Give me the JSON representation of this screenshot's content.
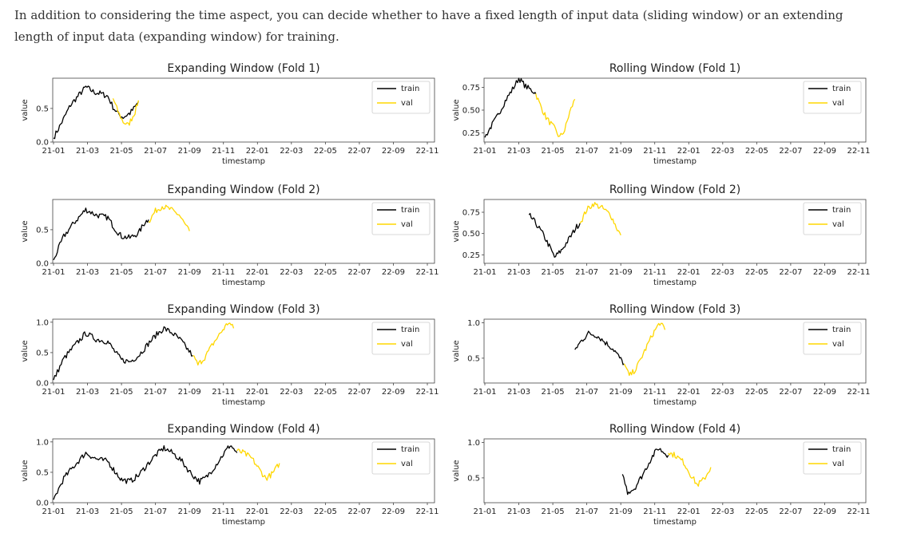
{
  "intro_text": "In addition to considering the time aspect, you can decide whether to have a fixed length of input data (sliding window) or an extending length of input data (expanding window) for training.",
  "colors": {
    "train": "#000000",
    "val": "#ffd700"
  },
  "chart_data": [
    {
      "type": "line",
      "title": "Expanding Window  (Fold 1)",
      "xlabel": "timestamp",
      "ylabel": "value",
      "x_ticks": [
        "21-01",
        "21-03",
        "21-05",
        "21-07",
        "21-09",
        "21-11",
        "22-01",
        "22-03",
        "22-05",
        "22-07",
        "22-09",
        "22-11"
      ],
      "y_ticks": [
        "0.0",
        "0.5"
      ],
      "ylim": [
        0,
        0.95
      ],
      "grid": false,
      "legend": "top-right",
      "series": [
        {
          "name": "train",
          "values": [
            [
              0,
              0.06
            ],
            [
              0.5,
              0.3
            ],
            [
              1.0,
              0.55
            ],
            [
              1.5,
              0.7
            ],
            [
              1.9,
              0.82
            ],
            [
              2.4,
              0.74
            ],
            [
              2.8,
              0.72
            ],
            [
              3.2,
              0.68
            ],
            [
              3.5,
              0.52
            ],
            [
              3.8,
              0.42
            ],
            [
              4.1,
              0.37
            ],
            [
              4.5,
              0.43
            ],
            [
              4.8,
              0.52
            ],
            [
              5.0,
              0.6
            ]
          ]
        },
        {
          "name": "val",
          "values": [
            [
              3.5,
              0.65
            ],
            [
              3.8,
              0.45
            ],
            [
              4.1,
              0.3
            ],
            [
              4.4,
              0.25
            ],
            [
              4.8,
              0.45
            ],
            [
              5.0,
              0.62
            ]
          ]
        }
      ]
    },
    {
      "type": "line",
      "title": "Rolling Window  (Fold 1)",
      "xlabel": "timestamp",
      "ylabel": "value",
      "x_ticks": [
        "21-01",
        "21-03",
        "21-05",
        "21-07",
        "21-09",
        "21-11",
        "22-01",
        "22-03",
        "22-05",
        "22-07",
        "22-09",
        "22-11"
      ],
      "y_ticks": [
        "0.25",
        "0.50",
        "0.75"
      ],
      "ylim": [
        0.15,
        0.85
      ],
      "grid": false,
      "legend": "top-right",
      "series": [
        {
          "name": "train",
          "values": [
            [
              0,
              0.2
            ],
            [
              0.3,
              0.3
            ],
            [
              0.7,
              0.42
            ],
            [
              1.2,
              0.6
            ],
            [
              1.7,
              0.75
            ],
            [
              2.0,
              0.85
            ],
            [
              2.4,
              0.76
            ],
            [
              2.9,
              0.7
            ],
            [
              3.0,
              0.68
            ]
          ]
        },
        {
          "name": "val",
          "values": [
            [
              3.0,
              0.68
            ],
            [
              3.2,
              0.58
            ],
            [
              3.6,
              0.42
            ],
            [
              4.1,
              0.3
            ],
            [
              4.4,
              0.2
            ],
            [
              4.7,
              0.28
            ],
            [
              5.0,
              0.48
            ],
            [
              5.3,
              0.62
            ]
          ]
        }
      ]
    },
    {
      "type": "line",
      "title": "Expanding Window  (Fold 2)",
      "xlabel": "timestamp",
      "ylabel": "value",
      "x_ticks": [
        "21-01",
        "21-03",
        "21-05",
        "21-07",
        "21-09",
        "21-11",
        "22-01",
        "22-03",
        "22-05",
        "22-07",
        "22-09",
        "22-11"
      ],
      "y_ticks": [
        "0.0",
        "0.5"
      ],
      "ylim": [
        0,
        0.95
      ],
      "grid": false,
      "legend": "top-right",
      "series": [
        {
          "name": "train",
          "values": [
            [
              0,
              0.05
            ],
            [
              0.6,
              0.4
            ],
            [
              1.2,
              0.6
            ],
            [
              1.9,
              0.8
            ],
            [
              2.5,
              0.72
            ],
            [
              3.2,
              0.68
            ],
            [
              3.6,
              0.52
            ],
            [
              4.0,
              0.4
            ],
            [
              4.5,
              0.38
            ],
            [
              5.0,
              0.45
            ],
            [
              5.4,
              0.62
            ],
            [
              5.6,
              0.65
            ]
          ]
        },
        {
          "name": "val",
          "values": [
            [
              5.6,
              0.62
            ],
            [
              6.0,
              0.78
            ],
            [
              6.4,
              0.85
            ],
            [
              6.9,
              0.8
            ],
            [
              7.4,
              0.72
            ],
            [
              7.8,
              0.55
            ],
            [
              8.0,
              0.48
            ]
          ]
        }
      ]
    },
    {
      "type": "line",
      "title": "Rolling Window  (Fold 2)",
      "xlabel": "timestamp",
      "ylabel": "value",
      "x_ticks": [
        "21-01",
        "21-03",
        "21-05",
        "21-07",
        "21-09",
        "21-11",
        "22-01",
        "22-03",
        "22-05",
        "22-07",
        "22-09",
        "22-11"
      ],
      "y_ticks": [
        "0.25",
        "0.50",
        "0.75"
      ],
      "ylim": [
        0.15,
        0.9
      ],
      "grid": false,
      "legend": "top-right",
      "series": [
        {
          "name": "train",
          "values": [
            [
              2.6,
              0.72
            ],
            [
              3.0,
              0.62
            ],
            [
              3.4,
              0.5
            ],
            [
              3.8,
              0.35
            ],
            [
              4.1,
              0.22
            ],
            [
              4.5,
              0.3
            ],
            [
              5.0,
              0.45
            ],
            [
              5.4,
              0.58
            ],
            [
              5.6,
              0.62
            ]
          ]
        },
        {
          "name": "val",
          "values": [
            [
              5.6,
              0.62
            ],
            [
              6.0,
              0.78
            ],
            [
              6.4,
              0.85
            ],
            [
              6.9,
              0.8
            ],
            [
              7.4,
              0.72
            ],
            [
              7.8,
              0.55
            ],
            [
              8.0,
              0.48
            ]
          ]
        }
      ]
    },
    {
      "type": "line",
      "title": "Expanding Window  (Fold 3)",
      "xlabel": "timestamp",
      "ylabel": "value",
      "x_ticks": [
        "21-01",
        "21-03",
        "21-05",
        "21-07",
        "21-09",
        "21-11",
        "22-01",
        "22-03",
        "22-05",
        "22-07",
        "22-09",
        "22-11"
      ],
      "y_ticks": [
        "0.0",
        "0.5",
        "1.0"
      ],
      "ylim": [
        0,
        1.05
      ],
      "grid": false,
      "legend": "top-right",
      "series": [
        {
          "name": "train",
          "values": [
            [
              0,
              0.05
            ],
            [
              0.6,
              0.4
            ],
            [
              1.2,
              0.6
            ],
            [
              1.9,
              0.82
            ],
            [
              2.5,
              0.72
            ],
            [
              3.2,
              0.68
            ],
            [
              3.6,
              0.52
            ],
            [
              4.0,
              0.38
            ],
            [
              4.5,
              0.35
            ],
            [
              5.0,
              0.45
            ],
            [
              5.5,
              0.62
            ],
            [
              6.0,
              0.78
            ],
            [
              6.5,
              0.9
            ],
            [
              7.0,
              0.82
            ],
            [
              7.5,
              0.7
            ],
            [
              7.9,
              0.55
            ],
            [
              8.2,
              0.45
            ]
          ]
        },
        {
          "name": "val",
          "values": [
            [
              8.2,
              0.45
            ],
            [
              8.5,
              0.3
            ],
            [
              8.9,
              0.42
            ],
            [
              9.4,
              0.65
            ],
            [
              9.9,
              0.85
            ],
            [
              10.3,
              1.0
            ],
            [
              10.6,
              0.9
            ]
          ]
        }
      ]
    },
    {
      "type": "line",
      "title": "Rolling Window  (Fold 3)",
      "xlabel": "timestamp",
      "ylabel": "value",
      "x_ticks": [
        "21-01",
        "21-03",
        "21-05",
        "21-07",
        "21-09",
        "21-11",
        "22-01",
        "22-03",
        "22-05",
        "22-07",
        "22-09",
        "22-11"
      ],
      "y_ticks": [
        "0.5",
        "1.0"
      ],
      "ylim": [
        0.15,
        1.05
      ],
      "grid": false,
      "legend": "top-right",
      "series": [
        {
          "name": "train",
          "values": [
            [
              5.3,
              0.62
            ],
            [
              5.7,
              0.75
            ],
            [
              6.1,
              0.85
            ],
            [
              6.6,
              0.82
            ],
            [
              7.1,
              0.72
            ],
            [
              7.6,
              0.62
            ],
            [
              8.0,
              0.48
            ],
            [
              8.2,
              0.42
            ]
          ]
        },
        {
          "name": "val",
          "values": [
            [
              8.2,
              0.42
            ],
            [
              8.5,
              0.25
            ],
            [
              8.9,
              0.35
            ],
            [
              9.4,
              0.6
            ],
            [
              9.9,
              0.85
            ],
            [
              10.3,
              1.0
            ],
            [
              10.6,
              0.9
            ]
          ]
        }
      ]
    },
    {
      "type": "line",
      "title": "Expanding Window  (Fold 4)",
      "xlabel": "timestamp",
      "ylabel": "value",
      "x_ticks": [
        "21-01",
        "21-03",
        "21-05",
        "21-07",
        "21-09",
        "21-11",
        "22-01",
        "22-03",
        "22-05",
        "22-07",
        "22-09",
        "22-11"
      ],
      "y_ticks": [
        "0.0",
        "0.5",
        "1.0"
      ],
      "ylim": [
        0,
        1.05
      ],
      "grid": false,
      "legend": "top-right",
      "series": [
        {
          "name": "train",
          "values": [
            [
              0,
              0.05
            ],
            [
              0.6,
              0.4
            ],
            [
              1.2,
              0.6
            ],
            [
              1.9,
              0.82
            ],
            [
              2.5,
              0.72
            ],
            [
              3.2,
              0.68
            ],
            [
              3.6,
              0.52
            ],
            [
              4.0,
              0.38
            ],
            [
              4.5,
              0.35
            ],
            [
              5.0,
              0.45
            ],
            [
              5.5,
              0.62
            ],
            [
              6.0,
              0.78
            ],
            [
              6.5,
              0.9
            ],
            [
              7.0,
              0.82
            ],
            [
              7.5,
              0.7
            ],
            [
              7.9,
              0.55
            ],
            [
              8.2,
              0.45
            ],
            [
              8.6,
              0.35
            ],
            [
              9.0,
              0.42
            ],
            [
              9.5,
              0.6
            ],
            [
              10.0,
              0.8
            ],
            [
              10.4,
              0.95
            ],
            [
              10.8,
              0.82
            ]
          ]
        },
        {
          "name": "val",
          "values": [
            [
              10.8,
              0.85
            ],
            [
              11.2,
              0.82
            ],
            [
              11.7,
              0.72
            ],
            [
              12.1,
              0.55
            ],
            [
              12.5,
              0.4
            ],
            [
              12.9,
              0.48
            ],
            [
              13.3,
              0.65
            ]
          ]
        }
      ]
    },
    {
      "type": "line",
      "title": "Rolling Window  (Fold 4)",
      "xlabel": "timestamp",
      "ylabel": "value",
      "x_ticks": [
        "21-01",
        "21-03",
        "21-05",
        "21-07",
        "21-09",
        "21-11",
        "22-01",
        "22-03",
        "22-05",
        "22-07",
        "22-09",
        "22-11"
      ],
      "y_ticks": [
        "0.5",
        "1.0"
      ],
      "ylim": [
        0.15,
        1.05
      ],
      "grid": false,
      "legend": "top-right",
      "series": [
        {
          "name": "train",
          "values": [
            [
              8.1,
              0.55
            ],
            [
              8.4,
              0.3
            ],
            [
              8.8,
              0.35
            ],
            [
              9.3,
              0.55
            ],
            [
              9.8,
              0.78
            ],
            [
              10.2,
              0.92
            ],
            [
              10.6,
              0.85
            ],
            [
              10.8,
              0.82
            ]
          ]
        },
        {
          "name": "val",
          "values": [
            [
              10.8,
              0.85
            ],
            [
              11.2,
              0.82
            ],
            [
              11.7,
              0.72
            ],
            [
              12.1,
              0.55
            ],
            [
              12.5,
              0.4
            ],
            [
              12.9,
              0.48
            ],
            [
              13.3,
              0.65
            ]
          ]
        }
      ]
    }
  ]
}
